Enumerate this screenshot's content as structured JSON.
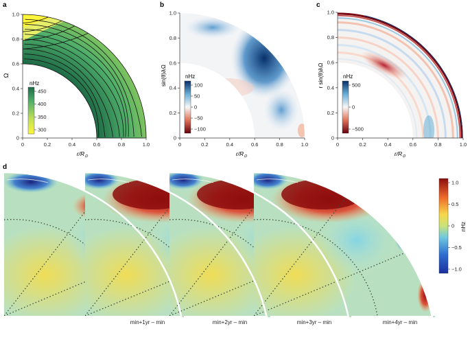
{
  "panels": {
    "a": {
      "letter": "a",
      "ylabel": "Ω",
      "xlabel": "r/R",
      "xlabel_sub": "⊙",
      "xticks": [
        "0",
        "0.2",
        "0.4",
        "0.6",
        "0.8",
        "1.0"
      ],
      "yticks": [
        "0",
        "0.2",
        "0.4",
        "0.6",
        "0.8",
        "1.0"
      ],
      "colorbar": {
        "unit": "nHz",
        "ticks": [
          "450",
          "400",
          "350",
          "300"
        ],
        "colors": [
          "#1e6b47",
          "#3aa36b",
          "#8fcc62",
          "#fff53a"
        ]
      }
    },
    "b": {
      "letter": "b",
      "ylabel": "sin(θ)∂ᵣΩ",
      "xlabel": "r/R",
      "xlabel_sub": "⊙",
      "xticks": [
        "0",
        "0.2",
        "0.4",
        "0.6",
        "0.8",
        "1.0"
      ],
      "yticks": [
        "0",
        "0.2",
        "0.4",
        "0.6",
        "0.8",
        "1.0"
      ],
      "colorbar": {
        "unit": "nHz",
        "ticks": [
          "100",
          "50",
          "0",
          "−50",
          "−100"
        ]
      }
    },
    "c": {
      "letter": "c",
      "ylabel": "r sin(θ)∂ᵣΩ",
      "xlabel": "r/R",
      "xlabel_sub": "⊙",
      "xticks": [
        "0",
        "0.2",
        "0.4",
        "0.6",
        "0.8",
        "1.0"
      ],
      "yticks": [
        "0",
        "0.2",
        "0.4",
        "0.6",
        "0.8",
        "1.0"
      ],
      "colorbar": {
        "unit": "nHz",
        "ticks": [
          "500",
          "0",
          "−500"
        ]
      }
    },
    "d": {
      "letter": "d",
      "wedge_labels": [
        "min+1yr – min",
        "min+2yr – min",
        "min+3yr – min",
        "min+4yr – min"
      ],
      "colorbar": {
        "unit": "nHz",
        "ticks": [
          "1.0",
          "0.5",
          "0",
          "−0.5",
          "−1.0"
        ]
      }
    }
  },
  "colors": {
    "blue": "#08306b",
    "red": "#67000d",
    "green": "#1e6b47",
    "yellow": "#fff53a"
  },
  "chart_data": [
    {
      "panel": "a",
      "type": "heatmap",
      "quantity": "Ω",
      "unit": "nHz",
      "xlim": [
        0,
        1.0
      ],
      "ylim": [
        0,
        1.0
      ],
      "color_range": [
        290,
        470
      ]
    },
    {
      "panel": "b",
      "type": "heatmap",
      "quantity": "sin(θ)∂ᵣΩ",
      "unit": "nHz",
      "xlim": [
        0,
        1.0
      ],
      "ylim": [
        0,
        1.0
      ],
      "color_range": [
        -100,
        100
      ]
    },
    {
      "panel": "c",
      "type": "heatmap",
      "quantity": "r sin(θ)∂ᵣΩ",
      "unit": "nHz",
      "xlim": [
        0,
        1.0
      ],
      "ylim": [
        0,
        1.0
      ],
      "color_range": [
        -500,
        500
      ]
    },
    {
      "panel": "d",
      "type": "heatmap",
      "unit": "nHz",
      "color_range": [
        -1.0,
        1.0
      ],
      "series": [
        {
          "name": "min+1yr – min"
        },
        {
          "name": "min+2yr – min"
        },
        {
          "name": "min+3yr – min"
        },
        {
          "name": "min+4yr – min"
        }
      ]
    }
  ]
}
